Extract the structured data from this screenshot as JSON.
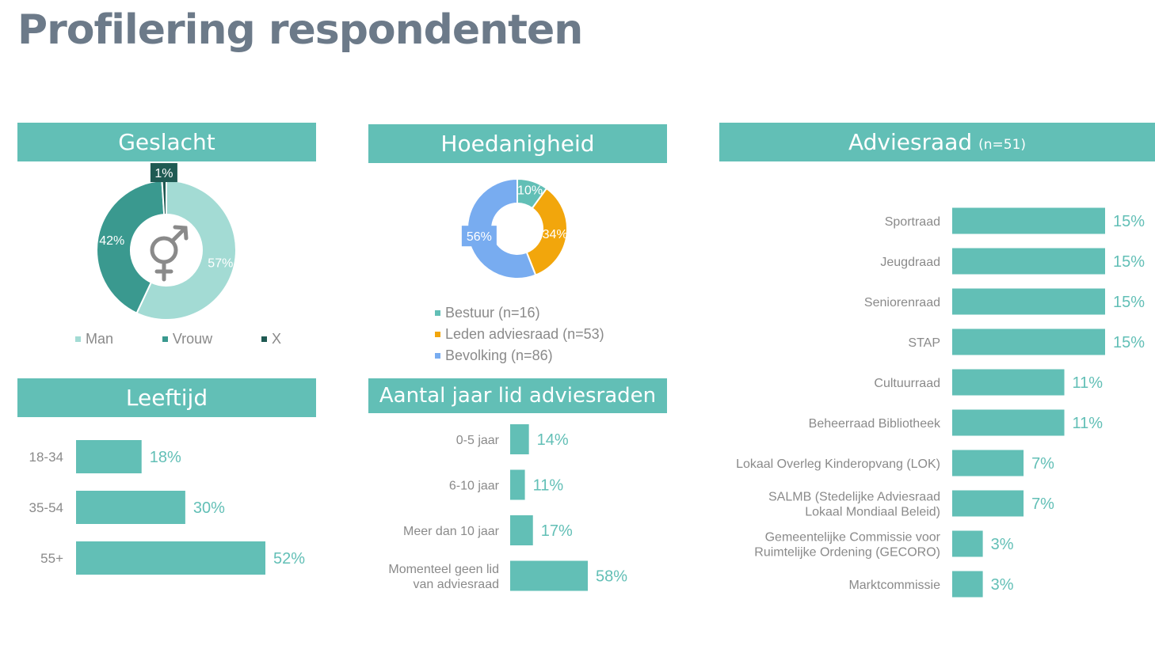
{
  "page": {
    "title": "Profilering respondenten"
  },
  "panels": {
    "geslacht": {
      "title": "Geslacht"
    },
    "hoedanigheid": {
      "title": "Hoedanigheid"
    },
    "adviesraad": {
      "title": "Adviesraad",
      "subtitle": "(n=51)"
    },
    "leeftijd": {
      "title": "Leeftijd"
    },
    "aantal_jaar": {
      "title": "Aantal jaar lid adviesraden"
    }
  },
  "icons": {
    "gender": "gender-symbol-icon"
  },
  "colors": {
    "header": "#62bfb6",
    "bar": "#62bfb6",
    "man": "#a3dbd4",
    "vrouw": "#3a998f",
    "x": "#1f5a53",
    "bestuur": "#62bfb6",
    "leden": "#f2a60c",
    "bevolking": "#78acf0"
  },
  "chart_data": [
    {
      "id": "geslacht",
      "type": "pie",
      "categories": [
        "Man",
        "Vrouw",
        "X"
      ],
      "values": [
        57,
        42,
        1
      ],
      "labels": [
        "57%",
        "42%",
        "1%"
      ],
      "legend": "bottom"
    },
    {
      "id": "hoedanigheid",
      "type": "pie",
      "categories": [
        "Bestuur (n=16)",
        "Leden adviesraad (n=53)",
        "Bevolking (n=86)"
      ],
      "values": [
        10,
        34,
        56
      ],
      "labels": [
        "10%",
        "34%",
        "56%"
      ],
      "legend": "bottom"
    },
    {
      "id": "adviesraad",
      "type": "bar",
      "orientation": "horizontal",
      "categories": [
        "Sportraad",
        "Jeugdraad",
        "Seniorenraad",
        "STAP",
        "Cultuurraad",
        "Beheerraad Bibliotheek",
        "Lokaal Overleg Kinderopvang (LOK)",
        "SALMB (Stedelijke Adviesraad\nLokaal Mondiaal Beleid)",
        "Gemeentelijke Commissie voor\nRuimtelijke Ordening (GECORO)",
        "Marktcommissie"
      ],
      "values": [
        15,
        15,
        15,
        15,
        11,
        11,
        7,
        7,
        3,
        3
      ],
      "labels": [
        "15%",
        "15%",
        "15%",
        "15%",
        "11%",
        "11%",
        "7%",
        "7%",
        "3%",
        "3%"
      ]
    },
    {
      "id": "leeftijd",
      "type": "bar",
      "orientation": "horizontal",
      "categories": [
        "18-34",
        "35-54",
        "55+"
      ],
      "values": [
        18,
        30,
        52
      ],
      "labels": [
        "18%",
        "30%",
        "52%"
      ]
    },
    {
      "id": "aantal_jaar",
      "type": "bar",
      "orientation": "horizontal",
      "categories": [
        "0-5 jaar",
        "6-10 jaar",
        "Meer dan 10 jaar",
        "Momenteel geen lid\nvan adviesraad"
      ],
      "values": [
        14,
        11,
        17,
        58
      ],
      "labels": [
        "14%",
        "11%",
        "17%",
        "58%"
      ]
    }
  ]
}
